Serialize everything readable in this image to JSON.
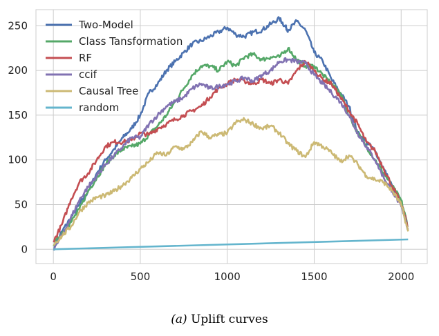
{
  "caption": {
    "prefix": "(a)",
    "text": "Uplift curves"
  },
  "chart_data": {
    "type": "line",
    "xlim": [
      -100,
      2150
    ],
    "ylim": [
      -16,
      268
    ],
    "xticks": [
      0,
      500,
      1000,
      1500,
      2000
    ],
    "yticks": [
      0,
      50,
      100,
      150,
      200,
      250
    ],
    "grid": true,
    "legend_position": "top-left",
    "series": [
      {
        "name": "Two-Model",
        "color": "#4c72b0",
        "points": [
          [
            0,
            0
          ],
          [
            50,
            20
          ],
          [
            100,
            35
          ],
          [
            150,
            50
          ],
          [
            200,
            65
          ],
          [
            250,
            85
          ],
          [
            300,
            100
          ],
          [
            350,
            112
          ],
          [
            400,
            125
          ],
          [
            450,
            135
          ],
          [
            500,
            150
          ],
          [
            550,
            175
          ],
          [
            600,
            185
          ],
          [
            650,
            200
          ],
          [
            700,
            210
          ],
          [
            750,
            220
          ],
          [
            800,
            230
          ],
          [
            850,
            233
          ],
          [
            900,
            238
          ],
          [
            950,
            243
          ],
          [
            1000,
            248
          ],
          [
            1050,
            240
          ],
          [
            1100,
            238
          ],
          [
            1150,
            243
          ],
          [
            1200,
            245
          ],
          [
            1250,
            252
          ],
          [
            1300,
            258
          ],
          [
            1330,
            250
          ],
          [
            1350,
            245
          ],
          [
            1400,
            255
          ],
          [
            1450,
            245
          ],
          [
            1500,
            220
          ],
          [
            1550,
            210
          ],
          [
            1600,
            190
          ],
          [
            1650,
            175
          ],
          [
            1700,
            160
          ],
          [
            1750,
            130
          ],
          [
            1800,
            120
          ],
          [
            1850,
            110
          ],
          [
            1900,
            90
          ],
          [
            1950,
            70
          ],
          [
            2000,
            50
          ],
          [
            2040,
            22
          ]
        ]
      },
      {
        "name": "Class Tansformation",
        "color": "#55a868",
        "points": [
          [
            0,
            5
          ],
          [
            50,
            18
          ],
          [
            100,
            30
          ],
          [
            150,
            45
          ],
          [
            200,
            65
          ],
          [
            250,
            80
          ],
          [
            300,
            95
          ],
          [
            350,
            105
          ],
          [
            400,
            112
          ],
          [
            450,
            115
          ],
          [
            500,
            118
          ],
          [
            550,
            128
          ],
          [
            600,
            138
          ],
          [
            650,
            150
          ],
          [
            700,
            165
          ],
          [
            750,
            180
          ],
          [
            800,
            195
          ],
          [
            850,
            205
          ],
          [
            900,
            205
          ],
          [
            950,
            200
          ],
          [
            1000,
            210
          ],
          [
            1050,
            205
          ],
          [
            1100,
            215
          ],
          [
            1150,
            218
          ],
          [
            1200,
            212
          ],
          [
            1250,
            215
          ],
          [
            1300,
            215
          ],
          [
            1350,
            225
          ],
          [
            1400,
            212
          ],
          [
            1450,
            205
          ],
          [
            1500,
            205
          ],
          [
            1550,
            195
          ],
          [
            1600,
            185
          ],
          [
            1650,
            175
          ],
          [
            1700,
            150
          ],
          [
            1750,
            130
          ],
          [
            1800,
            115
          ],
          [
            1850,
            100
          ],
          [
            1900,
            85
          ],
          [
            1950,
            70
          ],
          [
            2000,
            55
          ],
          [
            2040,
            25
          ]
        ]
      },
      {
        "name": "RF",
        "color": "#c44e52",
        "points": [
          [
            0,
            8
          ],
          [
            50,
            28
          ],
          [
            100,
            55
          ],
          [
            150,
            75
          ],
          [
            200,
            85
          ],
          [
            250,
            100
          ],
          [
            300,
            115
          ],
          [
            350,
            120
          ],
          [
            400,
            120
          ],
          [
            450,
            122
          ],
          [
            500,
            130
          ],
          [
            550,
            128
          ],
          [
            600,
            135
          ],
          [
            650,
            140
          ],
          [
            700,
            145
          ],
          [
            750,
            150
          ],
          [
            800,
            155
          ],
          [
            850,
            160
          ],
          [
            900,
            170
          ],
          [
            950,
            180
          ],
          [
            1000,
            185
          ],
          [
            1050,
            190
          ],
          [
            1100,
            188
          ],
          [
            1150,
            185
          ],
          [
            1200,
            190
          ],
          [
            1250,
            185
          ],
          [
            1300,
            190
          ],
          [
            1350,
            185
          ],
          [
            1400,
            200
          ],
          [
            1450,
            210
          ],
          [
            1500,
            200
          ],
          [
            1550,
            190
          ],
          [
            1600,
            185
          ],
          [
            1650,
            170
          ],
          [
            1700,
            155
          ],
          [
            1750,
            140
          ],
          [
            1800,
            120
          ],
          [
            1850,
            110
          ],
          [
            1900,
            90
          ],
          [
            1950,
            70
          ],
          [
            2000,
            50
          ],
          [
            2040,
            25
          ]
        ]
      },
      {
        "name": "ccif",
        "color": "#8172b2",
        "points": [
          [
            0,
            0
          ],
          [
            50,
            15
          ],
          [
            100,
            35
          ],
          [
            150,
            55
          ],
          [
            200,
            70
          ],
          [
            250,
            82
          ],
          [
            300,
            95
          ],
          [
            350,
            105
          ],
          [
            400,
            115
          ],
          [
            450,
            125
          ],
          [
            500,
            125
          ],
          [
            550,
            140
          ],
          [
            600,
            150
          ],
          [
            650,
            160
          ],
          [
            700,
            165
          ],
          [
            750,
            170
          ],
          [
            800,
            180
          ],
          [
            850,
            185
          ],
          [
            900,
            180
          ],
          [
            950,
            182
          ],
          [
            1000,
            185
          ],
          [
            1050,
            188
          ],
          [
            1100,
            192
          ],
          [
            1150,
            188
          ],
          [
            1200,
            195
          ],
          [
            1250,
            200
          ],
          [
            1300,
            210
          ],
          [
            1350,
            212
          ],
          [
            1400,
            210
          ],
          [
            1450,
            208
          ],
          [
            1500,
            195
          ],
          [
            1550,
            185
          ],
          [
            1600,
            175
          ],
          [
            1650,
            165
          ],
          [
            1700,
            150
          ],
          [
            1750,
            130
          ],
          [
            1800,
            115
          ],
          [
            1850,
            100
          ],
          [
            1900,
            80
          ],
          [
            1950,
            65
          ],
          [
            2000,
            48
          ],
          [
            2040,
            22
          ]
        ]
      },
      {
        "name": "Causal Tree",
        "color": "#ccb974",
        "points": [
          [
            0,
            5
          ],
          [
            50,
            15
          ],
          [
            100,
            25
          ],
          [
            150,
            42
          ],
          [
            200,
            52
          ],
          [
            250,
            58
          ],
          [
            300,
            60
          ],
          [
            350,
            65
          ],
          [
            400,
            72
          ],
          [
            450,
            80
          ],
          [
            500,
            90
          ],
          [
            550,
            98
          ],
          [
            600,
            108
          ],
          [
            650,
            105
          ],
          [
            700,
            115
          ],
          [
            750,
            112
          ],
          [
            800,
            120
          ],
          [
            850,
            132
          ],
          [
            900,
            125
          ],
          [
            950,
            128
          ],
          [
            1000,
            130
          ],
          [
            1050,
            142
          ],
          [
            1100,
            145
          ],
          [
            1150,
            140
          ],
          [
            1200,
            135
          ],
          [
            1250,
            138
          ],
          [
            1300,
            130
          ],
          [
            1350,
            118
          ],
          [
            1400,
            110
          ],
          [
            1450,
            103
          ],
          [
            1500,
            120
          ],
          [
            1550,
            115
          ],
          [
            1600,
            108
          ],
          [
            1650,
            98
          ],
          [
            1700,
            105
          ],
          [
            1750,
            95
          ],
          [
            1800,
            82
          ],
          [
            1850,
            78
          ],
          [
            1900,
            75
          ],
          [
            1950,
            65
          ],
          [
            2000,
            50
          ],
          [
            2040,
            20
          ]
        ]
      },
      {
        "name": "random",
        "color": "#64b5cd",
        "points": [
          [
            0,
            0
          ],
          [
            2040,
            11
          ]
        ]
      }
    ]
  }
}
